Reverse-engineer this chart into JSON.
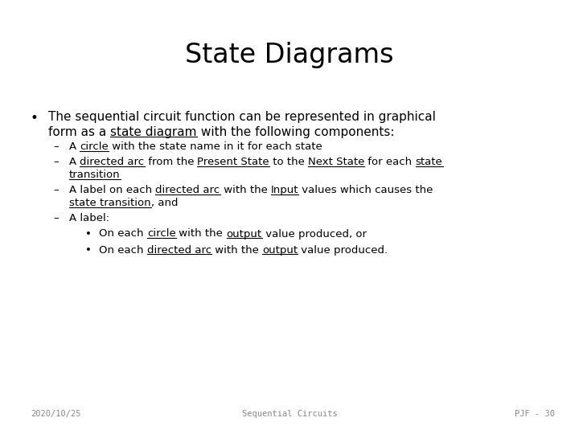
{
  "title": "State Diagrams",
  "title_fontsize": 24,
  "bg_color": "#ffffff",
  "text_color": "#000000",
  "footer_left": "2020/10/25",
  "footer_center": "Sequential Circuits",
  "footer_right": "PJF - 30",
  "footer_fontsize": 7.5,
  "body_fontsize": 11,
  "sub_fontsize": 9.5,
  "subsub_fontsize": 9.5,
  "footer_color": "#888888"
}
